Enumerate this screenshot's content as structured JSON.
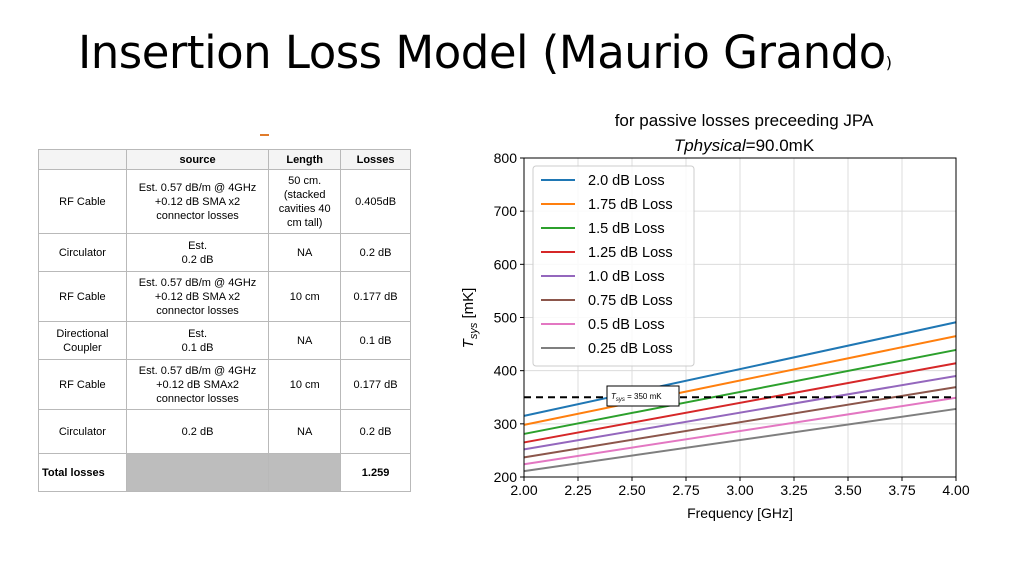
{
  "slide": {
    "title_main": "Insertion Loss Model (Maurio Grando",
    "title_paren": ")"
  },
  "table": {
    "headers": [
      "",
      "source",
      "Length",
      "Losses"
    ],
    "rows": [
      {
        "component": "RF Cable",
        "source": "Est. 0.57 dB/m @ 4GHz\n+0.12 dB SMA x2\nconnector losses",
        "length": "50 cm.\n(stacked\ncavities 40\ncm tall)",
        "losses": "0.405dB"
      },
      {
        "component": "Circulator",
        "source": "Est.\n0.2 dB",
        "length": "NA",
        "losses": "0.2 dB"
      },
      {
        "component": "RF Cable",
        "source": "Est. 0.57 dB/m @ 4GHz\n+0.12 dB SMA x2\nconnector losses",
        "length": "10 cm",
        "losses": "0.177 dB"
      },
      {
        "component": "Directional\nCoupler",
        "source": "Est.\n0.1 dB",
        "length": "NA",
        "losses": "0.1 dB"
      },
      {
        "component": "RF Cable",
        "source": "Est. 0.57 dB/m @ 4GHz\n+0.12 dB SMAx2\nconnector losses",
        "length": "10 cm",
        "losses": "0.177 dB"
      },
      {
        "component": "Circulator",
        "source": "0.2 dB",
        "length": "NA",
        "losses": "0.2 dB"
      }
    ],
    "total": {
      "label": "Total losses",
      "losses": "1.259"
    }
  },
  "chart_data": {
    "type": "line",
    "title_line1": "for passive losses preceeding JPA",
    "title_line2_italic": "Tphysical",
    "title_line2_rest": "=90.0mK",
    "xlabel": "Frequency [GHz]",
    "ylabel_main": "T",
    "ylabel_sub": "sys",
    "ylabel_unit": " [mK]",
    "xlim": [
      2.0,
      4.0
    ],
    "ylim": [
      200,
      800
    ],
    "xticks": [
      "2.00",
      "2.25",
      "2.50",
      "2.75",
      "3.00",
      "3.25",
      "3.50",
      "3.75",
      "4.00"
    ],
    "yticks": [
      "200",
      "300",
      "400",
      "500",
      "600",
      "700",
      "800"
    ],
    "grid": true,
    "legend_position": "upper-left",
    "series": [
      {
        "name": "2.0 dB Loss",
        "color": "#1f77b4",
        "x": [
          2.0,
          4.0
        ],
        "y": [
          315,
          491
        ]
      },
      {
        "name": "1.75 dB Loss",
        "color": "#ff7f0e",
        "x": [
          2.0,
          4.0
        ],
        "y": [
          298,
          465
        ]
      },
      {
        "name": "1.5 dB Loss",
        "color": "#2ca02c",
        "x": [
          2.0,
          4.0
        ],
        "y": [
          281,
          439
        ]
      },
      {
        "name": "1.25 dB Loss",
        "color": "#d62728",
        "x": [
          2.0,
          4.0
        ],
        "y": [
          265,
          414
        ]
      },
      {
        "name": "1.0 dB Loss",
        "color": "#9467bd",
        "x": [
          2.0,
          4.0
        ],
        "y": [
          252,
          390
        ]
      },
      {
        "name": "0.75 dB Loss",
        "color": "#8c564b",
        "x": [
          2.0,
          4.0
        ],
        "y": [
          237,
          369
        ]
      },
      {
        "name": "0.5 dB Loss",
        "color": "#e377c2",
        "x": [
          2.0,
          4.0
        ],
        "y": [
          224,
          349
        ]
      },
      {
        "name": "0.25 dB Loss",
        "color": "#7f7f7f",
        "x": [
          2.0,
          4.0
        ],
        "y": [
          211,
          328
        ]
      }
    ],
    "reference_line": {
      "y": 350,
      "color": "#000000",
      "label_main": "T",
      "label_sub": "sys",
      "label_rest": " = 350 mK"
    }
  }
}
